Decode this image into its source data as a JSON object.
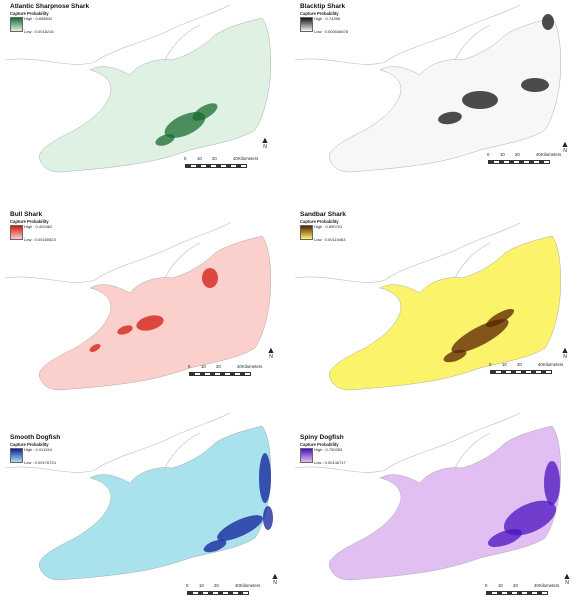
{
  "legend_heading": "Capture Probability",
  "north_label": "N",
  "scale": {
    "ticks": [
      "0",
      "10",
      "20",
      "40"
    ],
    "unit": "Kilometers"
  },
  "panels": [
    {
      "title": "Atlantic Sharpnose Shark",
      "high": "High : 0.898542",
      "low": "Low : 0.0018216",
      "color_low": "#dff1e3",
      "color_high": "#1a6b30"
    },
    {
      "title": "Blacktip Shark",
      "high": "High : 0.74396",
      "low": "Low : 0.000546678",
      "color_low": "#f7f7f7",
      "color_high": "#111111"
    },
    {
      "title": "Bull Shark",
      "high": "High : 0.402462",
      "low": "Low : 0.00150823",
      "color_low": "#fbcfcb",
      "color_high": "#d11a12"
    },
    {
      "title": "Sandbar Shark",
      "high": "High : 0.890701",
      "low": "Low : 0.00115463",
      "color_low": "#fbf36a",
      "color_high": "#5a2200"
    },
    {
      "title": "Smooth Dogfish",
      "high": "High : 0.911264",
      "low": "Low : 0.00176724",
      "color_low": "#a9e2ec",
      "color_high": "#0f1e9a"
    },
    {
      "title": "Spiny Dogfish",
      "high": "High : 0.750283",
      "low": "Low : 0.00146717",
      "color_low": "#e2bff3",
      "color_high": "#4a12c0"
    }
  ]
}
